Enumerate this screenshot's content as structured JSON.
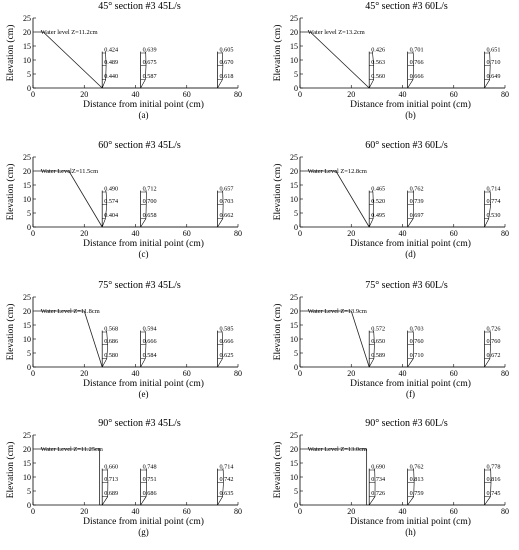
{
  "figure": {
    "xlabel": "Distance from initial point (cm)",
    "ylabel": "Elevation (cm)"
  },
  "chart_data": [
    {
      "type": "line",
      "title": "45° section #3 45L/s",
      "label": "(a)",
      "water_label": "Water level Z=11.2cm",
      "xlim": [
        0,
        80
      ],
      "ylim": [
        0,
        25
      ],
      "xticks": [
        0,
        20,
        40,
        60,
        80
      ],
      "yticks": [
        0,
        5,
        10,
        15,
        20,
        25
      ],
      "profile": {
        "x": [
          1,
          4,
          27
        ],
        "y": [
          20,
          20,
          0
        ]
      },
      "sections": [
        {
          "x": 27,
          "velocities": [
            "0.424",
            "0.489",
            "0.440"
          ]
        },
        {
          "x": 42,
          "velocities": [
            "0.639",
            "0.675",
            "0.587"
          ]
        },
        {
          "x": 72,
          "velocities": [
            "0.605",
            "0.670",
            "0.618"
          ]
        }
      ]
    },
    {
      "type": "line",
      "title": "45° section #3 60L/s",
      "label": "(b)",
      "water_label": "Water level Z=13.2cm",
      "xlim": [
        0,
        80
      ],
      "ylim": [
        0,
        25
      ],
      "xticks": [
        0,
        20,
        40,
        60,
        80
      ],
      "yticks": [
        0,
        5,
        10,
        15,
        20,
        25
      ],
      "profile": {
        "x": [
          1,
          4,
          27
        ],
        "y": [
          20,
          20,
          0
        ]
      },
      "sections": [
        {
          "x": 27,
          "velocities": [
            "0.426",
            "0.563",
            "0.560"
          ]
        },
        {
          "x": 42,
          "velocities": [
            "0.701",
            "0.766",
            "0.666"
          ]
        },
        {
          "x": 72,
          "velocities": [
            "0.651",
            "0.710",
            "0.649"
          ]
        }
      ]
    },
    {
      "type": "line",
      "title": "60° section #3 45L/s",
      "label": "(c)",
      "water_label": "Water LevelZ=11.5cm",
      "xlim": [
        0,
        80
      ],
      "ylim": [
        0,
        25
      ],
      "xticks": [
        0,
        20,
        40,
        60,
        80
      ],
      "yticks": [
        0,
        5,
        10,
        15,
        20,
        25
      ],
      "profile": {
        "x": [
          1,
          14,
          27
        ],
        "y": [
          20,
          20,
          0
        ]
      },
      "sections": [
        {
          "x": 27,
          "velocities": [
            "0.490",
            "0.574",
            "0.404"
          ]
        },
        {
          "x": 42,
          "velocities": [
            "0.712",
            "0.700",
            "0.658"
          ]
        },
        {
          "x": 72,
          "velocities": [
            "0.657",
            "0.703",
            "0.662"
          ]
        }
      ]
    },
    {
      "type": "line",
      "title": "60° section #3 60L/s",
      "label": "(d)",
      "water_label": "Water Level Z=12.8cm",
      "xlim": [
        0,
        80
      ],
      "ylim": [
        0,
        25
      ],
      "xticks": [
        0,
        20,
        40,
        60,
        80
      ],
      "yticks": [
        0,
        5,
        10,
        15,
        20,
        25
      ],
      "profile": {
        "x": [
          1,
          14,
          27
        ],
        "y": [
          20,
          20,
          0
        ]
      },
      "sections": [
        {
          "x": 27,
          "velocities": [
            "0.465",
            "0.520",
            "0.495"
          ]
        },
        {
          "x": 42,
          "velocities": [
            "0.762",
            "0.739",
            "0.697"
          ]
        },
        {
          "x": 72,
          "velocities": [
            "0.714",
            "0.774",
            "0.530"
          ]
        }
      ]
    },
    {
      "type": "line",
      "title": "75° section #3 45L/s",
      "label": "(e)",
      "water_label": "Water Level Z=11.8cm",
      "xlim": [
        0,
        80
      ],
      "ylim": [
        0,
        25
      ],
      "xticks": [
        0,
        20,
        40,
        60,
        80
      ],
      "yticks": [
        0,
        5,
        10,
        15,
        20,
        25
      ],
      "profile": {
        "x": [
          1,
          20,
          27
        ],
        "y": [
          20,
          20,
          0
        ]
      },
      "sections": [
        {
          "x": 27,
          "velocities": [
            "0.568",
            "0.686",
            "0.580"
          ]
        },
        {
          "x": 42,
          "velocities": [
            "0.594",
            "0.666",
            "0.584"
          ]
        },
        {
          "x": 72,
          "velocities": [
            "0.585",
            "0.666",
            "0.625"
          ]
        }
      ]
    },
    {
      "type": "line",
      "title": "75° section #3 60L/s",
      "label": "(f)",
      "water_label": "Water Level Z=13.9cm",
      "xlim": [
        0,
        80
      ],
      "ylim": [
        0,
        25
      ],
      "xticks": [
        0,
        20,
        40,
        60,
        80
      ],
      "yticks": [
        0,
        5,
        10,
        15,
        20,
        25
      ],
      "profile": {
        "x": [
          1,
          20,
          27
        ],
        "y": [
          20,
          20,
          0
        ]
      },
      "sections": [
        {
          "x": 27,
          "velocities": [
            "0.572",
            "0.650",
            "0.589"
          ]
        },
        {
          "x": 42,
          "velocities": [
            "0.703",
            "0.760",
            "0.710"
          ]
        },
        {
          "x": 72,
          "velocities": [
            "0.726",
            "0.760",
            "0.672"
          ]
        }
      ]
    },
    {
      "type": "line",
      "title": "90° section #3 45L/s",
      "label": "(g)",
      "water_label": "Water Level Z=11.25cm",
      "xlim": [
        0,
        80
      ],
      "ylim": [
        0,
        25
      ],
      "xticks": [
        0,
        20,
        40,
        60,
        80
      ],
      "yticks": [
        0,
        5,
        10,
        15,
        20,
        25
      ],
      "profile": {
        "x": [
          1,
          26,
          26
        ],
        "y": [
          20,
          20,
          0
        ]
      },
      "sections": [
        {
          "x": 27,
          "velocities": [
            "0.660",
            "0.713",
            "0.689"
          ]
        },
        {
          "x": 42,
          "velocities": [
            "0.748",
            "0.751",
            "0.686"
          ]
        },
        {
          "x": 72,
          "velocities": [
            "0.714",
            "0.742",
            "0.635"
          ]
        }
      ]
    },
    {
      "type": "line",
      "title": "90° section #3 60L/s",
      "label": "(h)",
      "water_label": "Water Level Z=13.0cm",
      "xlim": [
        0,
        80
      ],
      "ylim": [
        0,
        25
      ],
      "xticks": [
        0,
        20,
        40,
        60,
        80
      ],
      "yticks": [
        0,
        5,
        10,
        15,
        20,
        25
      ],
      "profile": {
        "x": [
          1,
          26,
          26
        ],
        "y": [
          20,
          20,
          0
        ]
      },
      "sections": [
        {
          "x": 27,
          "velocities": [
            "0.690",
            "0.734",
            "0.726"
          ]
        },
        {
          "x": 42,
          "velocities": [
            "0.762",
            "0.813",
            "0.759"
          ]
        },
        {
          "x": 72,
          "velocities": [
            "0.778",
            "0.816",
            "0.745"
          ]
        }
      ]
    }
  ]
}
